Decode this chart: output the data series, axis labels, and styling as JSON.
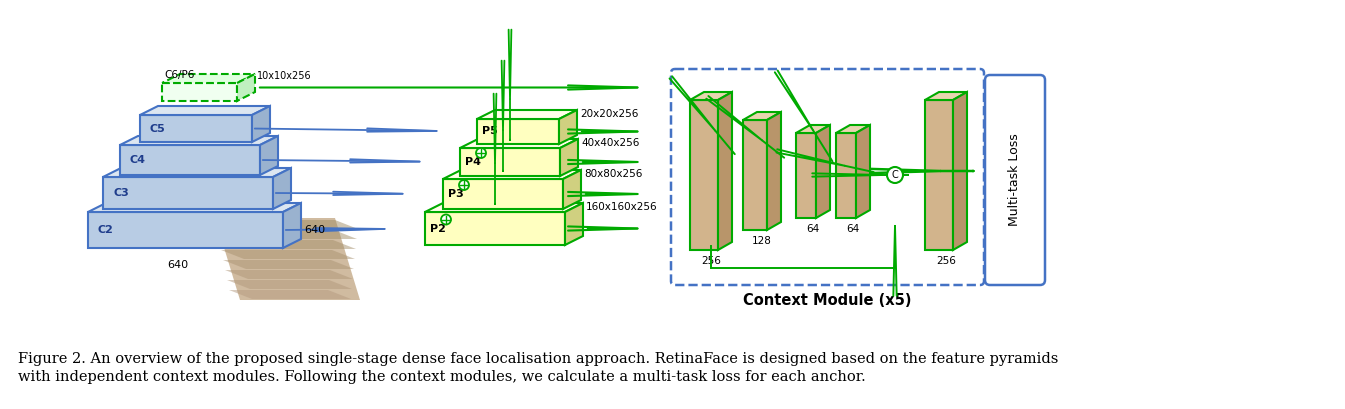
{
  "fig_width": 13.45,
  "fig_height": 4.09,
  "bg_color": "#ffffff",
  "caption_line1": "Figure 2. An overview of the proposed single-stage dense face localisation approach. RetinaFace is designed based on the feature pyramids",
  "caption_line2": "with independent context modules. Following the context modules, we calculate a multi-task loss for each anchor.",
  "caption_fontsize": 10.5,
  "blue_block_color": "#b8cce4",
  "blue_block_edge": "#4472c4",
  "blue_block_top": "#dce6f1",
  "yellow_block_color": "#ffffc0",
  "yellow_block_top": "#ffffe8",
  "yellow_block_edge": "#00aa00",
  "tan_face": "#d2b48c",
  "tan_top": "#e8d5b0",
  "tan_side": "#b8956a",
  "tan_edge": "#00aa00",
  "green_color": "#00aa00",
  "blue_arrow_color": "#4472c4",
  "dashed_box_color": "#4472c4",
  "context_label": "Context Module (x5)",
  "multitask_label": "Multi-task Loss"
}
